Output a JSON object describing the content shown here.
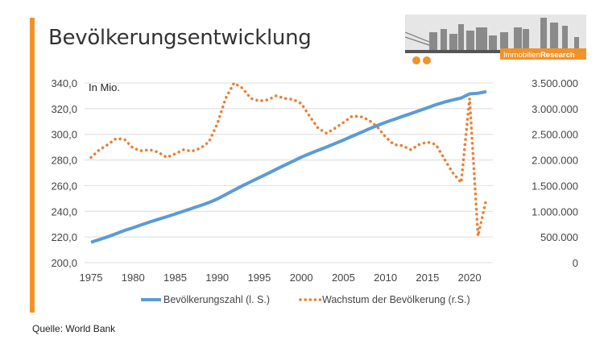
{
  "title": "Bevölkerungsentwicklung",
  "source": "Quelle: World Bank",
  "logo": {
    "text_light": "Immobilien",
    "text_bold": "Research"
  },
  "colors": {
    "accent": "#f0932b",
    "population": "#5b9bd5",
    "growth": "#ed7d31"
  },
  "chart_data": {
    "type": "line",
    "title": "Bevölkerungsentwicklung",
    "unit_label": "In Mio.",
    "x": [
      1975,
      1976,
      1977,
      1978,
      1979,
      1980,
      1981,
      1982,
      1983,
      1984,
      1985,
      1986,
      1987,
      1988,
      1989,
      1990,
      1991,
      1992,
      1993,
      1994,
      1995,
      1996,
      1997,
      1998,
      1999,
      2000,
      2001,
      2002,
      2003,
      2004,
      2005,
      2006,
      2007,
      2008,
      2009,
      2010,
      2011,
      2012,
      2013,
      2014,
      2015,
      2016,
      2017,
      2018,
      2019,
      2020,
      2021,
      2022
    ],
    "xticks": [
      "1975",
      "1980",
      "1985",
      "1990",
      "1995",
      "2000",
      "2005",
      "2010",
      "2015",
      "2020"
    ],
    "y_left": {
      "range": [
        200,
        340
      ],
      "ticks": [
        "200,0",
        "220,0",
        "240,0",
        "260,0",
        "280,0",
        "300,0",
        "320,0",
        "340,0"
      ]
    },
    "y_right": {
      "range": [
        0,
        3500000
      ],
      "ticks": [
        "0",
        "500.000",
        "1.000.000",
        "1.500.000",
        "2.000.000",
        "2.500.000",
        "3.000.000",
        "3.500.000"
      ]
    },
    "grid": true,
    "legend_position": "bottom",
    "series": [
      {
        "name": "Bevölkerungszahl (l. S.)",
        "axis": "left",
        "style": "solid",
        "values": [
          215.9,
          218.0,
          220.2,
          222.6,
          225.1,
          227.2,
          229.5,
          231.7,
          233.8,
          235.8,
          237.9,
          240.1,
          242.3,
          244.5,
          246.8,
          249.6,
          253.0,
          256.5,
          259.9,
          263.1,
          266.3,
          269.4,
          272.7,
          275.9,
          279.0,
          282.2,
          285.0,
          287.6,
          290.1,
          292.8,
          295.5,
          298.4,
          301.2,
          304.1,
          306.8,
          309.3,
          311.6,
          313.9,
          316.1,
          318.4,
          320.7,
          323.1,
          325.1,
          326.8,
          328.3,
          331.5,
          332.0,
          333.3
        ]
      },
      {
        "name": "Wachstum der Bevölkerung (r.S.)",
        "axis": "right",
        "style": "dotted",
        "values": [
          2050000,
          2200000,
          2300000,
          2420000,
          2400000,
          2230000,
          2180000,
          2200000,
          2150000,
          2050000,
          2120000,
          2200000,
          2170000,
          2230000,
          2350000,
          2700000,
          3200000,
          3500000,
          3400000,
          3200000,
          3150000,
          3170000,
          3250000,
          3200000,
          3180000,
          3100000,
          2850000,
          2620000,
          2520000,
          2620000,
          2730000,
          2850000,
          2850000,
          2780000,
          2650000,
          2450000,
          2300000,
          2280000,
          2200000,
          2300000,
          2350000,
          2300000,
          2020000,
          1750000,
          1560000,
          3200000,
          520000,
          1250000
        ]
      }
    ]
  }
}
